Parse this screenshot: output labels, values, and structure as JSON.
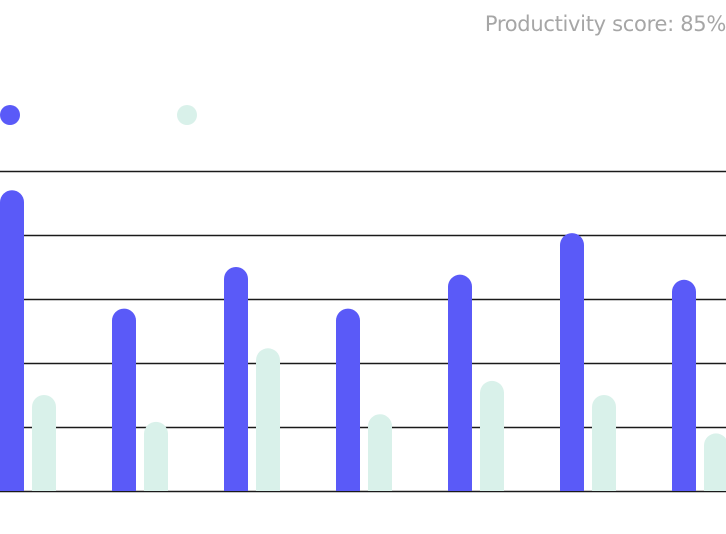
{
  "header": {
    "score_text": "Productivity score: 85%"
  },
  "colors": {
    "series_a": "#5a5af8",
    "series_b": "#d9f1ea",
    "gridline": "#1a1a1a",
    "score_text": "#a6a6a6"
  },
  "legend": {
    "items": [
      {
        "color": "#5a5af8"
      },
      {
        "color": "#d9f1ea"
      }
    ]
  },
  "chart_data": {
    "type": "bar",
    "grouped": true,
    "categories": [
      "",
      "",
      "",
      "",
      "",
      "",
      ""
    ],
    "series": [
      {
        "values": [
          4.7,
          2.85,
          3.5,
          2.85,
          3.38,
          4.03,
          3.3
        ]
      },
      {
        "values": [
          1.5,
          1.08,
          2.23,
          1.2,
          1.72,
          1.5,
          0.9
        ]
      }
    ],
    "ylim": [
      0,
      5
    ],
    "grid": true,
    "legend_position": "top-left",
    "xlabel": "",
    "ylabel": ""
  }
}
